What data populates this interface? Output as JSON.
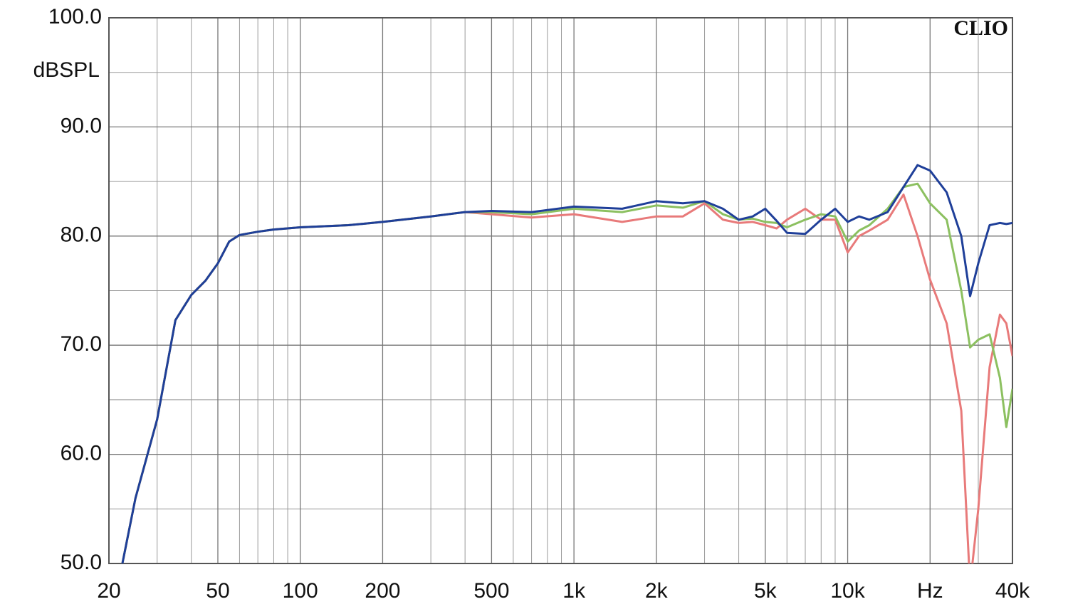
{
  "chart_data": {
    "type": "line",
    "y_label": "dBSPL",
    "annotation": "CLIO",
    "log_x": true,
    "grid": true,
    "xlim": [
      20,
      40000
    ],
    "ylim": [
      50,
      100
    ],
    "xticks": [
      20,
      50,
      100,
      200,
      500,
      {
        "value": 1000,
        "label": "1k"
      },
      {
        "value": 2000,
        "label": "2k"
      },
      {
        "value": 5000,
        "label": "5k"
      },
      {
        "value": 10000,
        "label": "10k"
      },
      {
        "value": 20000,
        "label": "Hz"
      },
      {
        "value": 40000,
        "label": "40k"
      }
    ],
    "xticks_minor": [
      30,
      40,
      60,
      70,
      80,
      90,
      300,
      400,
      600,
      700,
      800,
      900,
      3000,
      4000,
      6000,
      7000,
      8000,
      9000,
      30000
    ],
    "yticks": [
      {
        "value": 50,
        "label": "50.0"
      },
      {
        "value": 60,
        "label": "60.0"
      },
      {
        "value": 70,
        "label": "70.0"
      },
      {
        "value": 80,
        "label": "80.0"
      },
      {
        "value": 90,
        "label": "90.0"
      },
      {
        "value": 100,
        "label": "100.0"
      }
    ],
    "yticks_minor": [
      55,
      65,
      75,
      85,
      95
    ],
    "x": [
      22.4,
      25,
      30,
      35,
      40,
      45,
      50,
      55,
      60,
      70,
      80,
      100,
      150,
      200,
      300,
      400,
      500,
      700,
      1000,
      1500,
      2000,
      2500,
      3000,
      3500,
      4000,
      4500,
      5000,
      5500,
      6000,
      7000,
      8000,
      9000,
      10000,
      11000,
      12000,
      14000,
      16000,
      18000,
      20000,
      23000,
      26000,
      28000,
      30000,
      33000,
      36000,
      38000,
      40000
    ],
    "series": [
      {
        "color": "#e87a7a",
        "values": [
          50,
          56,
          63.2,
          72.3,
          74.6,
          75.9,
          77.5,
          79.5,
          80.1,
          80.4,
          80.6,
          80.8,
          81.0,
          81.3,
          81.8,
          82.2,
          82.0,
          81.7,
          82.0,
          81.3,
          81.8,
          81.8,
          83.0,
          81.5,
          81.2,
          81.3,
          81.0,
          80.7,
          81.5,
          82.5,
          81.5,
          81.5,
          78.5,
          80.0,
          80.5,
          81.5,
          83.8,
          80.0,
          76.0,
          72.0,
          64.0,
          48.0,
          55.0,
          68.0,
          72.8,
          72.0,
          69.0
        ]
      },
      {
        "color": "#8cc060",
        "values": [
          50,
          56,
          63.2,
          72.3,
          74.6,
          75.9,
          77.5,
          79.5,
          80.1,
          80.4,
          80.6,
          80.8,
          81.0,
          81.3,
          81.8,
          82.2,
          82.2,
          82.0,
          82.5,
          82.2,
          82.8,
          82.6,
          83.2,
          82.0,
          81.5,
          81.6,
          81.3,
          81.2,
          80.8,
          81.5,
          82.0,
          81.8,
          79.5,
          80.5,
          81.0,
          82.5,
          84.5,
          84.8,
          83.0,
          81.5,
          75.0,
          69.8,
          70.5,
          71.0,
          67.0,
          62.5,
          66.0
        ]
      },
      {
        "color": "#1f3f99",
        "values": [
          50,
          56,
          63.2,
          72.3,
          74.6,
          75.9,
          77.5,
          79.5,
          80.1,
          80.4,
          80.6,
          80.8,
          81.0,
          81.3,
          81.8,
          82.2,
          82.3,
          82.2,
          82.7,
          82.5,
          83.2,
          83.0,
          83.2,
          82.5,
          81.5,
          81.8,
          82.5,
          81.4,
          80.3,
          80.2,
          81.5,
          82.5,
          81.3,
          81.8,
          81.5,
          82.2,
          84.5,
          86.5,
          86.0,
          84.0,
          80.0,
          74.5,
          77.5,
          81.0,
          81.2,
          81.1,
          81.2
        ]
      }
    ]
  }
}
